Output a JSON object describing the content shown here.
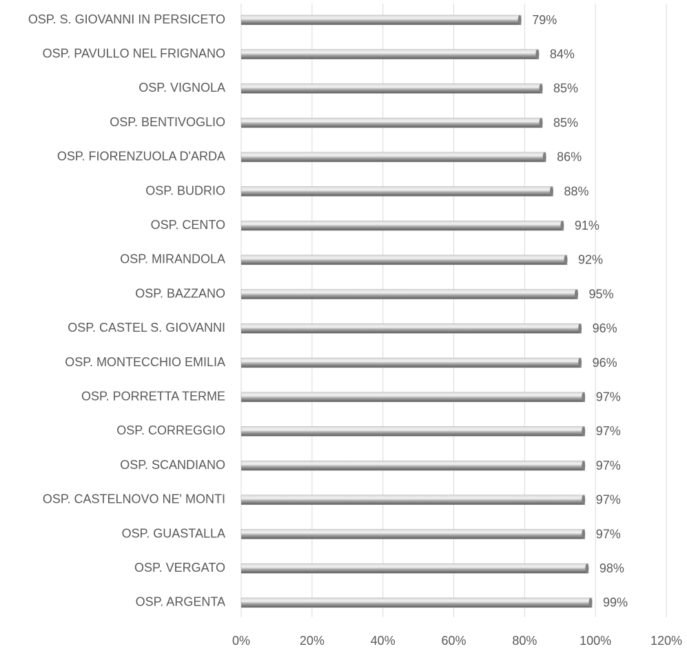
{
  "chart_data": {
    "type": "bar",
    "orientation": "horizontal",
    "categories": [
      "OSP. S. GIOVANNI IN PERSICETO",
      "OSP. PAVULLO NEL FRIGNANO",
      "OSP. VIGNOLA",
      "OSP. BENTIVOGLIO",
      "OSP. FIORENZUOLA D'ARDA",
      "OSP. BUDRIO",
      "OSP. CENTO",
      "OSP. MIRANDOLA",
      "OSP. BAZZANO",
      "OSP. CASTEL S. GIOVANNI",
      "OSP. MONTECCHIO EMILIA",
      "OSP. PORRETTA TERME",
      "OSP. CORREGGIO",
      "OSP. SCANDIANO",
      "OSP. CASTELNOVO NE' MONTI",
      "OSP. GUASTALLA",
      "OSP. VERGATO",
      "OSP. ARGENTA"
    ],
    "values": [
      79,
      84,
      85,
      85,
      86,
      88,
      91,
      92,
      95,
      96,
      96,
      97,
      97,
      97,
      97,
      97,
      98,
      99
    ],
    "value_labels": [
      "79%",
      "84%",
      "85%",
      "85%",
      "86%",
      "88%",
      "91%",
      "92%",
      "95%",
      "96%",
      "96%",
      "97%",
      "97%",
      "97%",
      "97%",
      "97%",
      "98%",
      "99%"
    ],
    "color": "#a6a6a6",
    "xlim": [
      0,
      120
    ],
    "xticks": [
      {
        "value": 0,
        "label": "0%"
      },
      {
        "value": 20,
        "label": "20%"
      },
      {
        "value": 40,
        "label": "40%"
      },
      {
        "value": 60,
        "label": "60%"
      },
      {
        "value": 80,
        "label": "80%"
      },
      {
        "value": 100,
        "label": "100%"
      },
      {
        "value": 120,
        "label": "120%"
      }
    ],
    "grid": true
  }
}
